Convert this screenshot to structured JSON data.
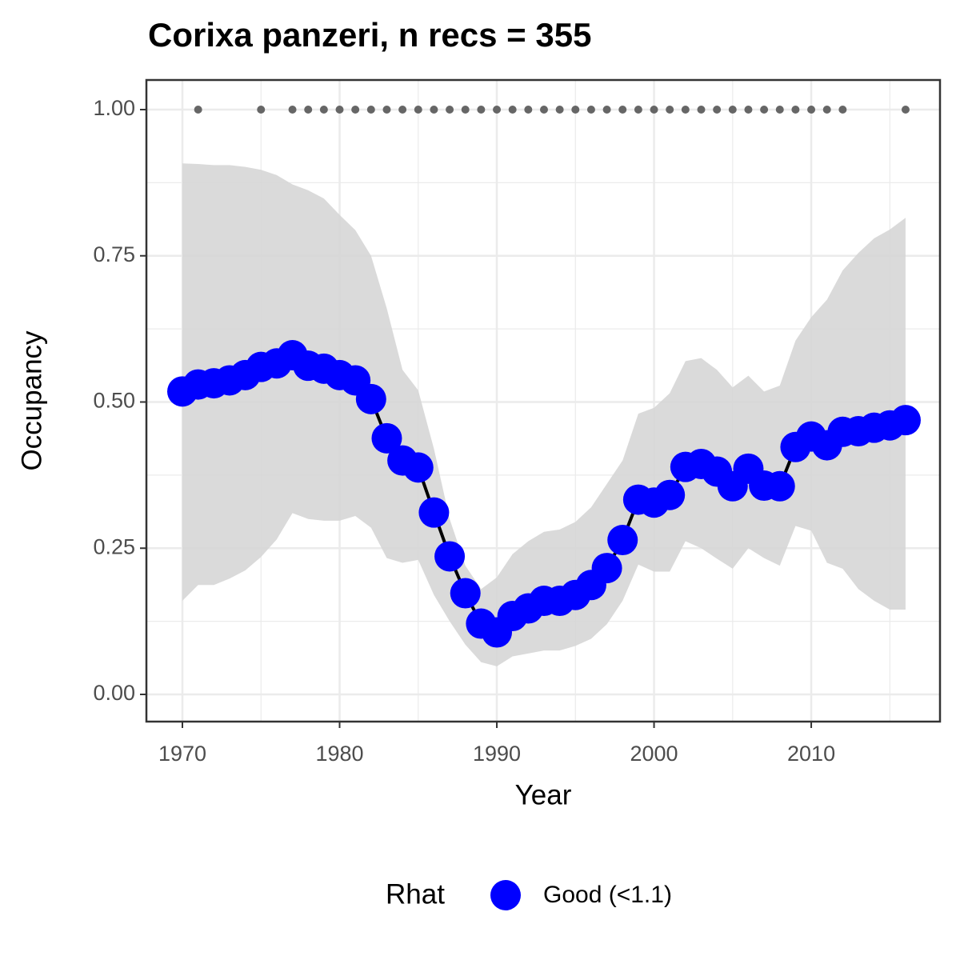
{
  "chart_data": {
    "type": "line",
    "title": "Corixa panzeri, n recs = 355",
    "x_label": "Year",
    "y_label": "Occupancy",
    "x": [
      1970,
      1971,
      1972,
      1973,
      1974,
      1975,
      1976,
      1977,
      1978,
      1979,
      1980,
      1981,
      1982,
      1983,
      1984,
      1985,
      1986,
      1987,
      1988,
      1989,
      1990,
      1991,
      1992,
      1993,
      1994,
      1995,
      1996,
      1997,
      1998,
      1999,
      2000,
      2001,
      2002,
      2003,
      2004,
      2005,
      2006,
      2007,
      2008,
      2009,
      2010,
      2011,
      2012,
      2013,
      2014,
      2015,
      2016
    ],
    "series": [
      {
        "name": "Good (<1.1)",
        "color": "#0000ff",
        "values": [
          0.518,
          0.53,
          0.532,
          0.537,
          0.546,
          0.56,
          0.566,
          0.58,
          0.562,
          0.557,
          0.546,
          0.537,
          0.505,
          0.438,
          0.4,
          0.388,
          0.311,
          0.236,
          0.173,
          0.121,
          0.106,
          0.134,
          0.147,
          0.16,
          0.16,
          0.17,
          0.187,
          0.216,
          0.264,
          0.333,
          0.328,
          0.341,
          0.389,
          0.394,
          0.381,
          0.356,
          0.386,
          0.357,
          0.356,
          0.423,
          0.441,
          0.426,
          0.449,
          0.45,
          0.456,
          0.46,
          0.469
        ]
      }
    ],
    "band": {
      "color": "#d6d6d6",
      "lower": [
        0.16,
        0.187,
        0.187,
        0.198,
        0.212,
        0.235,
        0.265,
        0.31,
        0.3,
        0.297,
        0.297,
        0.305,
        0.285,
        0.233,
        0.225,
        0.23,
        0.17,
        0.125,
        0.085,
        0.055,
        0.048,
        0.065,
        0.07,
        0.075,
        0.075,
        0.083,
        0.095,
        0.12,
        0.16,
        0.222,
        0.21,
        0.21,
        0.262,
        0.25,
        0.232,
        0.215,
        0.25,
        0.233,
        0.22,
        0.288,
        0.28,
        0.225,
        0.215,
        0.18,
        0.16,
        0.145,
        0.145
      ],
      "upper": [
        0.908,
        0.907,
        0.905,
        0.905,
        0.902,
        0.897,
        0.888,
        0.872,
        0.862,
        0.848,
        0.82,
        0.794,
        0.75,
        0.66,
        0.555,
        0.52,
        0.42,
        0.3,
        0.22,
        0.18,
        0.2,
        0.24,
        0.262,
        0.278,
        0.282,
        0.295,
        0.32,
        0.36,
        0.4,
        0.48,
        0.49,
        0.515,
        0.57,
        0.575,
        0.555,
        0.525,
        0.545,
        0.518,
        0.528,
        0.605,
        0.645,
        0.675,
        0.725,
        0.755,
        0.78,
        0.795,
        0.815
      ]
    },
    "records": {
      "color": "#666666",
      "x": [
        1971,
        1975,
        1977,
        1978,
        1979,
        1980,
        1981,
        1982,
        1983,
        1984,
        1985,
        1986,
        1987,
        1988,
        1989,
        1990,
        1991,
        1992,
        1993,
        1994,
        1995,
        1996,
        1997,
        1998,
        1999,
        2000,
        2001,
        2002,
        2003,
        2004,
        2005,
        2006,
        2007,
        2008,
        2009,
        2010,
        2011,
        2012,
        2016
      ],
      "values": [
        1,
        1,
        1,
        1,
        1,
        1,
        1,
        1,
        1,
        1,
        1,
        1,
        1,
        1,
        1,
        1,
        1,
        1,
        1,
        1,
        1,
        1,
        1,
        1,
        1,
        1,
        1,
        1,
        1,
        1,
        1,
        1,
        1,
        1,
        1,
        1,
        1,
        1,
        1
      ]
    },
    "line_color": "#000000",
    "legend_title": "Rhat",
    "legend": "bottom",
    "xlim": [
      1967.71,
      2018.19
    ],
    "xticks": [
      1970,
      1980,
      1990,
      2000,
      2010
    ],
    "ylim": [
      -0.0465,
      1.0506
    ],
    "yticks": [
      {
        "value": 0,
        "label": "0.00"
      },
      {
        "value": 0.25,
        "label": "0.25"
      },
      {
        "value": 0.5,
        "label": "0.50"
      },
      {
        "value": 0.75,
        "label": "0.75"
      },
      {
        "value": 1,
        "label": "1.00"
      }
    ],
    "grid": true
  }
}
